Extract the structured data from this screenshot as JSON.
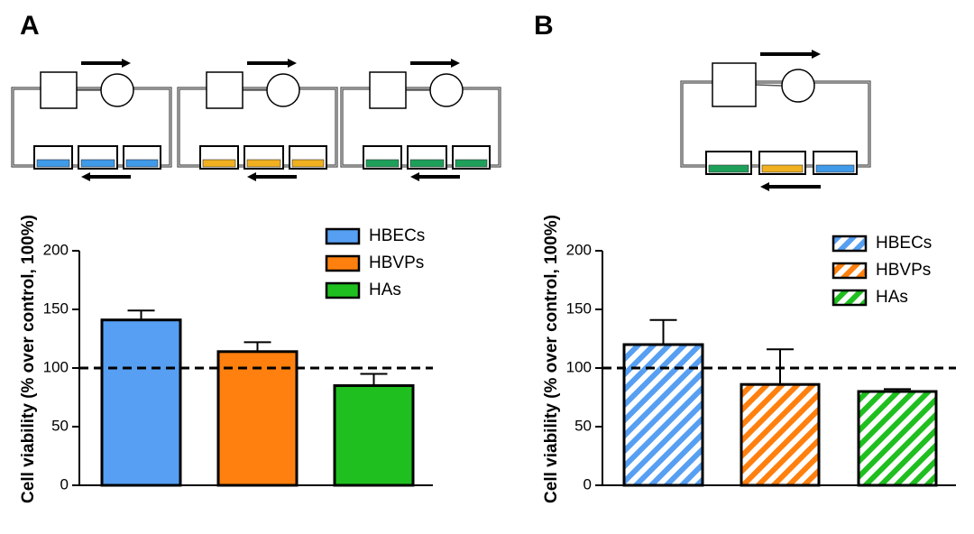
{
  "chart_data": [
    {
      "type": "bar",
      "panel": "A",
      "y_label": "Cell viability (% over control, 100%)",
      "categories": [
        "HBECs",
        "HBVPs",
        "HAs"
      ],
      "values": [
        141,
        114,
        85
      ],
      "errors": [
        8,
        8,
        10
      ],
      "colors": [
        "#569ff2",
        "#ff800e",
        "#1fbf1f"
      ],
      "hatched": false,
      "ylim": [
        0,
        200
      ],
      "yticks": [
        0,
        50,
        100,
        150,
        200
      ],
      "reference_line": 100,
      "legend": "upper right"
    },
    {
      "type": "bar",
      "panel": "B",
      "y_label": "Cell viability (% over control, 100%)",
      "categories": [
        "HBECs",
        "HBVPs",
        "HAs"
      ],
      "values": [
        120,
        86,
        80
      ],
      "errors": [
        21,
        30,
        2
      ],
      "colors": [
        "#569ff2",
        "#ff800e",
        "#1fbf1f"
      ],
      "hatched": true,
      "ylim": [
        0,
        200
      ],
      "yticks": [
        0,
        50,
        100,
        150,
        200
      ],
      "reference_line": 100,
      "legend": "upper right"
    }
  ]
}
